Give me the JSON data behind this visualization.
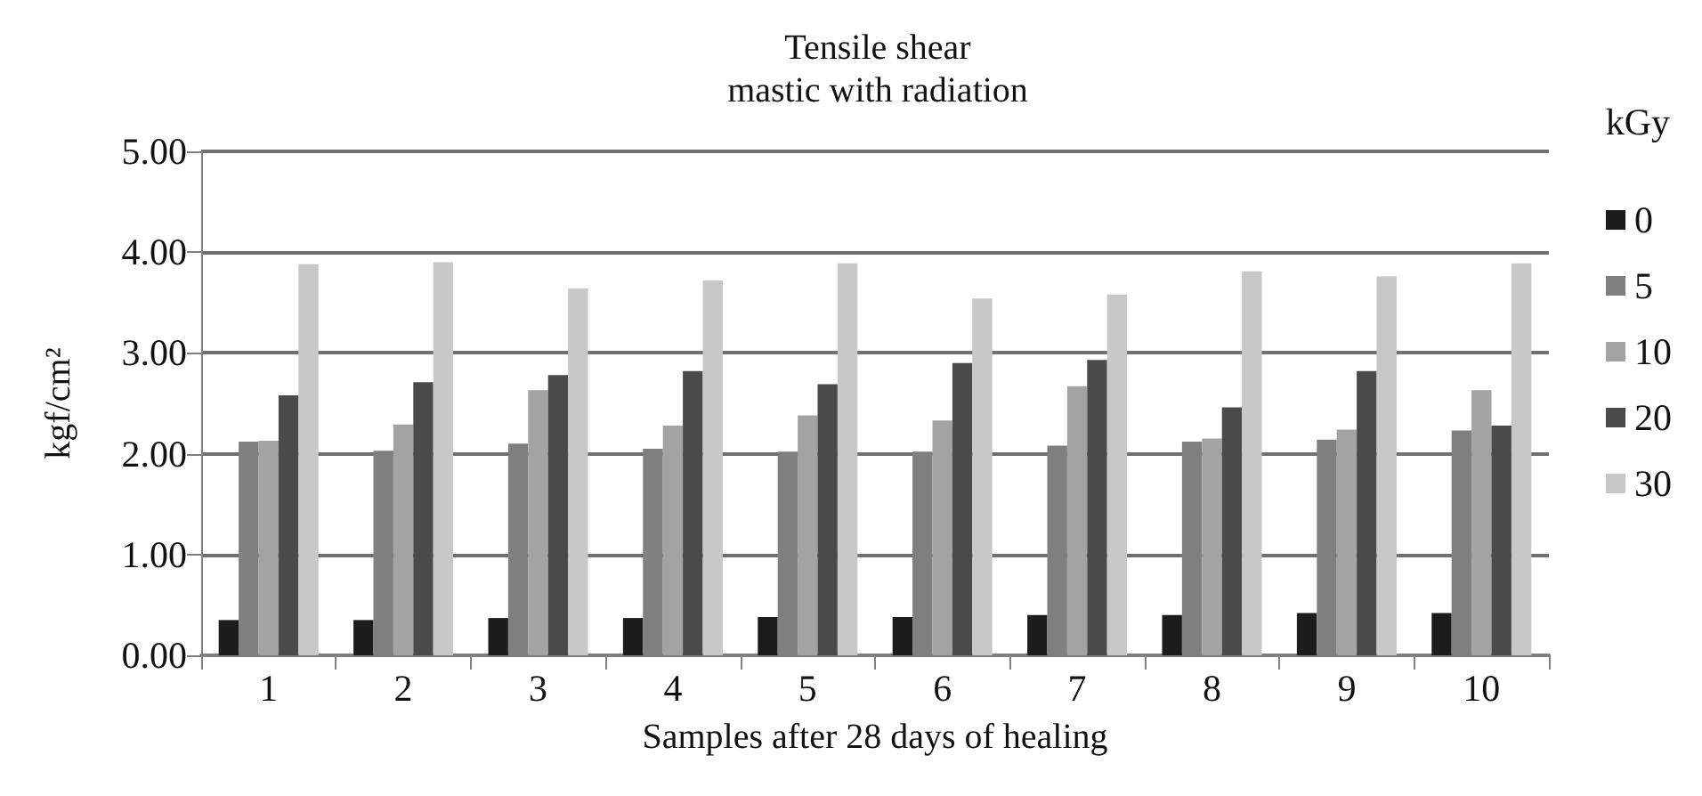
{
  "chart_data": {
    "type": "bar",
    "title": "Tensile shear",
    "subtitle": "mastic with radiation",
    "xlabel": "Samples after 28 days of healing",
    "ylabel": "kgf/cm²",
    "legend_title": "kGy",
    "legend": "right",
    "grid": "y",
    "categories": [
      "1",
      "2",
      "3",
      "4",
      "5",
      "6",
      "7",
      "8",
      "9",
      "10"
    ],
    "ylim": [
      0,
      5
    ],
    "yticks": [
      {
        "value": 0,
        "label": "0.00"
      },
      {
        "value": 1,
        "label": "1.00"
      },
      {
        "value": 2,
        "label": "2.00"
      },
      {
        "value": 3,
        "label": "3.00"
      },
      {
        "value": 4,
        "label": "4.00"
      },
      {
        "value": 5,
        "label": "5.00"
      }
    ],
    "series": [
      {
        "name": "0",
        "color": "#1c1c1c",
        "values": [
          0.35,
          0.35,
          0.37,
          0.37,
          0.38,
          0.38,
          0.4,
          0.4,
          0.42,
          0.42
        ]
      },
      {
        "name": "5",
        "color": "#7f7f7f",
        "values": [
          2.12,
          2.03,
          2.1,
          2.05,
          2.02,
          2.02,
          2.08,
          2.12,
          2.14,
          2.23
        ]
      },
      {
        "name": "10",
        "color": "#a3a3a3",
        "values": [
          2.13,
          2.29,
          2.63,
          2.28,
          2.38,
          2.33,
          2.67,
          2.15,
          2.24,
          2.63
        ]
      },
      {
        "name": "20",
        "color": "#4a4a4a",
        "values": [
          2.58,
          2.71,
          2.78,
          2.82,
          2.69,
          2.9,
          2.93,
          2.46,
          2.82,
          2.28
        ]
      },
      {
        "name": "30",
        "color": "#c8c8c8",
        "values": [
          3.88,
          3.9,
          3.64,
          3.72,
          3.89,
          3.54,
          3.58,
          3.81,
          3.76,
          3.89
        ]
      }
    ]
  }
}
